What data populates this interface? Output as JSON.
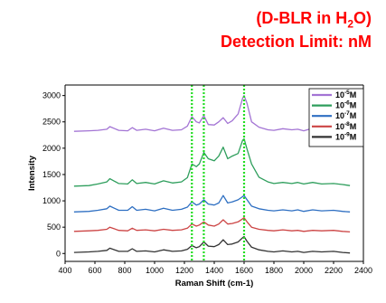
{
  "header": {
    "line1_prefix": "(D-BLR in H",
    "line1_sub": "2",
    "line1_suffix": "O)",
    "line2": "Detection Limit: nM",
    "color": "#ff0000"
  },
  "chart_data": {
    "type": "line",
    "title": "",
    "xlabel": "Raman Shift (cm-1)",
    "ylabel": "Intensity",
    "xlim": [
      400,
      2400
    ],
    "ylim": [
      -150,
      3200
    ],
    "xticks": [
      400,
      600,
      800,
      1000,
      1200,
      1400,
      1600,
      1800,
      2000,
      2200,
      2400
    ],
    "yticks": [
      0,
      500,
      1000,
      1500,
      2000,
      2500,
      3000
    ],
    "grid": false,
    "legend_position": "right",
    "reference_lines": {
      "x": [
        1250,
        1330,
        1600
      ],
      "style": "dotted",
      "color": "#22dd22"
    },
    "series": [
      {
        "name": "10",
        "exponent": "-5",
        "unit": "M",
        "color": "#a374d4",
        "x": [
          460,
          560,
          620,
          680,
          700,
          760,
          820,
          850,
          880,
          940,
          1000,
          1060,
          1120,
          1180,
          1220,
          1250,
          1280,
          1300,
          1330,
          1360,
          1400,
          1430,
          1460,
          1490,
          1520,
          1560,
          1590,
          1600,
          1620,
          1650,
          1700,
          1760,
          1800,
          1860,
          1920,
          1960,
          2000,
          2060,
          2120,
          2200,
          2260,
          2310
        ],
        "y": [
          2320,
          2330,
          2340,
          2360,
          2410,
          2340,
          2330,
          2390,
          2340,
          2360,
          2330,
          2380,
          2340,
          2350,
          2420,
          2600,
          2500,
          2480,
          2620,
          2450,
          2440,
          2500,
          2580,
          2470,
          2520,
          2650,
          2950,
          3000,
          2850,
          2500,
          2400,
          2350,
          2340,
          2370,
          2350,
          2360,
          2330,
          2380,
          2340,
          2360,
          2330,
          2320
        ]
      },
      {
        "name": "10",
        "exponent": "-6",
        "unit": "M",
        "color": "#2e9e5c",
        "x": [
          460,
          560,
          620,
          680,
          700,
          760,
          820,
          850,
          880,
          940,
          1000,
          1060,
          1120,
          1180,
          1220,
          1250,
          1280,
          1300,
          1330,
          1360,
          1400,
          1430,
          1460,
          1490,
          1520,
          1560,
          1590,
          1600,
          1620,
          1650,
          1700,
          1760,
          1800,
          1860,
          1920,
          1960,
          2000,
          2060,
          2120,
          2200,
          2260,
          2310
        ],
        "y": [
          1280,
          1290,
          1320,
          1360,
          1420,
          1330,
          1320,
          1400,
          1330,
          1350,
          1320,
          1380,
          1340,
          1360,
          1440,
          1700,
          1650,
          1700,
          1920,
          1800,
          1760,
          1850,
          2020,
          1800,
          1850,
          1900,
          2150,
          2180,
          1980,
          1700,
          1450,
          1360,
          1330,
          1350,
          1330,
          1350,
          1320,
          1350,
          1320,
          1330,
          1310,
          1290
        ]
      },
      {
        "name": "10",
        "exponent": "-7",
        "unit": "M",
        "color": "#2e6fc2",
        "x": [
          460,
          560,
          620,
          680,
          700,
          760,
          820,
          850,
          880,
          940,
          1000,
          1060,
          1120,
          1180,
          1220,
          1250,
          1280,
          1300,
          1330,
          1360,
          1400,
          1430,
          1460,
          1490,
          1520,
          1560,
          1590,
          1600,
          1620,
          1650,
          1700,
          1760,
          1800,
          1860,
          1920,
          1960,
          2000,
          2060,
          2120,
          2200,
          2260,
          2310
        ],
        "y": [
          790,
          800,
          820,
          850,
          900,
          820,
          820,
          890,
          820,
          840,
          810,
          860,
          820,
          840,
          880,
          980,
          920,
          940,
          1020,
          940,
          920,
          960,
          1100,
          960,
          980,
          1020,
          1080,
          1100,
          1020,
          900,
          850,
          820,
          810,
          830,
          810,
          830,
          800,
          830,
          810,
          820,
          800,
          790
        ]
      },
      {
        "name": "10",
        "exponent": "-8",
        "unit": "M",
        "color": "#cc4444",
        "x": [
          460,
          560,
          620,
          680,
          700,
          760,
          820,
          850,
          880,
          940,
          1000,
          1060,
          1120,
          1180,
          1220,
          1250,
          1280,
          1300,
          1330,
          1360,
          1400,
          1430,
          1460,
          1490,
          1520,
          1560,
          1590,
          1600,
          1620,
          1650,
          1700,
          1760,
          1800,
          1860,
          1920,
          1960,
          2000,
          2060,
          2120,
          2200,
          2260,
          2310
        ],
        "y": [
          420,
          430,
          440,
          460,
          500,
          440,
          430,
          480,
          440,
          450,
          430,
          460,
          440,
          450,
          480,
          560,
          520,
          540,
          600,
          540,
          520,
          560,
          640,
          560,
          570,
          600,
          660,
          680,
          600,
          500,
          460,
          440,
          430,
          450,
          430,
          440,
          420,
          440,
          430,
          440,
          420,
          410
        ]
      },
      {
        "name": "10",
        "exponent": "-9",
        "unit": "M",
        "color": "#333333",
        "x": [
          460,
          560,
          620,
          680,
          700,
          760,
          820,
          850,
          880,
          940,
          1000,
          1060,
          1120,
          1180,
          1220,
          1250,
          1280,
          1300,
          1330,
          1360,
          1400,
          1430,
          1460,
          1490,
          1520,
          1560,
          1590,
          1600,
          1620,
          1650,
          1700,
          1760,
          1800,
          1860,
          1920,
          1960,
          2000,
          2060,
          2120,
          2200,
          2260,
          2310
        ],
        "y": [
          20,
          30,
          40,
          60,
          100,
          40,
          40,
          90,
          40,
          50,
          30,
          70,
          40,
          50,
          80,
          150,
          110,
          130,
          220,
          140,
          130,
          170,
          260,
          170,
          180,
          220,
          300,
          320,
          230,
          120,
          70,
          40,
          30,
          50,
          30,
          40,
          20,
          40,
          30,
          40,
          20,
          10
        ]
      }
    ]
  }
}
